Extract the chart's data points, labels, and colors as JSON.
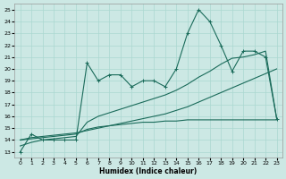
{
  "xlabel": "Humidex (Indice chaleur)",
  "bg_color": "#cce8e4",
  "line_color": "#1a6b5a",
  "grid_color": "#aad8d0",
  "xlim": [
    -0.5,
    23.5
  ],
  "ylim": [
    12.5,
    25.5
  ],
  "xticks": [
    0,
    1,
    2,
    3,
    4,
    5,
    6,
    7,
    8,
    9,
    10,
    11,
    12,
    13,
    14,
    15,
    16,
    17,
    18,
    19,
    20,
    21,
    22,
    23
  ],
  "yticks": [
    13,
    14,
    15,
    16,
    17,
    18,
    19,
    20,
    21,
    22,
    23,
    24,
    25
  ],
  "curve1_x": [
    0,
    1,
    2,
    3,
    4,
    5,
    6,
    7,
    8,
    9,
    10,
    11,
    12,
    13,
    14,
    15,
    16,
    17,
    18,
    19,
    20,
    21,
    22,
    23
  ],
  "curve1_y": [
    13,
    14.5,
    14,
    14,
    14,
    14,
    20.5,
    19,
    19.5,
    19.5,
    18.5,
    19,
    19,
    18.5,
    20,
    23,
    25,
    24,
    22,
    19.8,
    21.5,
    21.5,
    21,
    15.8
  ],
  "curve2_x": [
    0,
    1,
    2,
    3,
    4,
    5,
    6,
    7,
    8,
    9,
    10,
    11,
    12,
    13,
    14,
    15,
    16,
    17,
    18,
    19,
    20,
    21,
    22,
    23
  ],
  "curve2_y": [
    14,
    14.2,
    14.3,
    14.4,
    14.5,
    14.6,
    14.8,
    15.0,
    15.2,
    15.4,
    15.6,
    15.8,
    16.0,
    16.2,
    16.5,
    16.8,
    17.2,
    17.6,
    18.0,
    18.4,
    18.8,
    19.2,
    19.6,
    20.0
  ],
  "curve3_x": [
    0,
    1,
    2,
    3,
    4,
    5,
    6,
    7,
    8,
    9,
    10,
    11,
    12,
    13,
    14,
    15,
    16,
    17,
    18,
    19,
    20,
    21,
    22,
    23
  ],
  "curve3_y": [
    14,
    14.1,
    14.2,
    14.3,
    14.4,
    14.5,
    14.9,
    15.1,
    15.2,
    15.3,
    15.4,
    15.5,
    15.5,
    15.6,
    15.6,
    15.7,
    15.7,
    15.7,
    15.7,
    15.7,
    15.7,
    15.7,
    15.7,
    15.7
  ],
  "curve4_x": [
    0,
    1,
    2,
    3,
    4,
    5,
    6,
    7,
    8,
    9,
    10,
    11,
    12,
    13,
    14,
    15,
    16,
    17,
    18,
    19,
    20,
    21,
    22,
    23
  ],
  "curve4_y": [
    13.5,
    13.8,
    14.0,
    14.1,
    14.2,
    14.3,
    15.5,
    16.0,
    16.3,
    16.6,
    16.9,
    17.2,
    17.5,
    17.8,
    18.2,
    18.7,
    19.3,
    19.8,
    20.4,
    20.9,
    21.0,
    21.2,
    21.5,
    15.8
  ]
}
